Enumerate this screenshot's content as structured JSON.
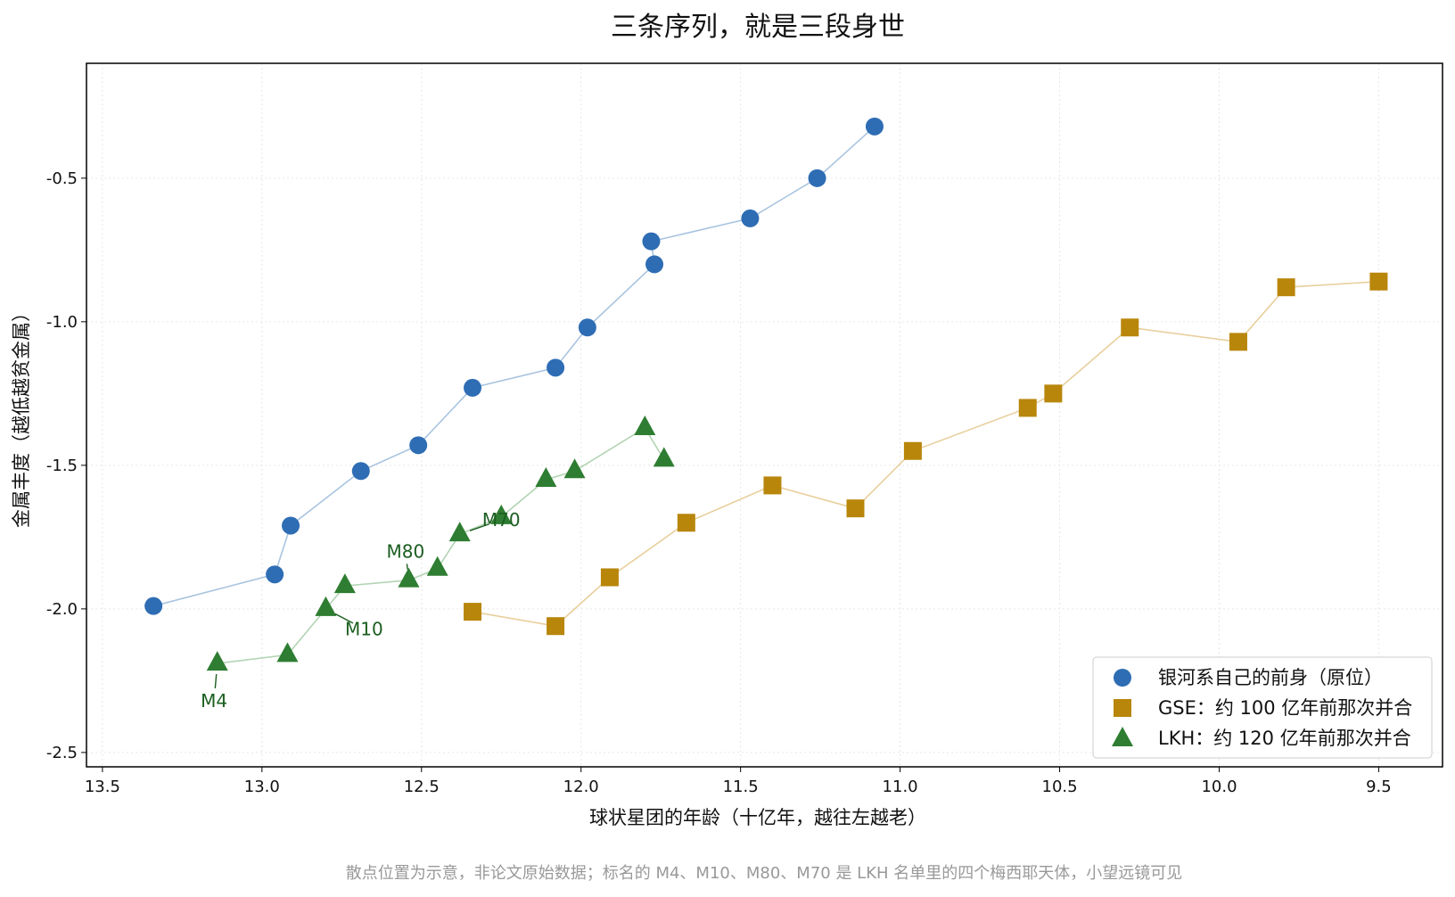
{
  "chart_data": {
    "type": "scatter",
    "title": "三条序列，就是三段身世",
    "xlabel": "球状星团的年龄（十亿年，越往左越老）",
    "ylabel": "金属丰度（越低越贫金属）",
    "xlim": [
      13.55,
      9.3
    ],
    "ylim": [
      -2.55,
      -0.1
    ],
    "x_inverted": true,
    "x_ticks": [
      13.5,
      13.0,
      12.5,
      12.0,
      11.5,
      11.0,
      10.5,
      10.0,
      9.5
    ],
    "x_tick_labels": [
      "13.5",
      "13.0",
      "12.5",
      "12.0",
      "11.5",
      "11.0",
      "10.5",
      "10.0",
      "9.5"
    ],
    "y_ticks": [
      -0.5,
      -1.0,
      -1.5,
      -2.0,
      -2.5
    ],
    "y_tick_labels": [
      "-0.5",
      "-1.0",
      "-1.5",
      "-2.0",
      "-2.5"
    ],
    "grid": true,
    "legend_position": "bottom-right",
    "series": [
      {
        "name": "银河系自己的前身（原位）",
        "marker": "circle",
        "color": "#2e6db4",
        "line_color": "#a9c4e0",
        "points": [
          [
            13.34,
            -1.99
          ],
          [
            12.96,
            -1.88
          ],
          [
            12.91,
            -1.71
          ],
          [
            12.69,
            -1.52
          ],
          [
            12.51,
            -1.43
          ],
          [
            12.34,
            -1.23
          ],
          [
            12.08,
            -1.16
          ],
          [
            11.98,
            -1.02
          ],
          [
            11.77,
            -0.8
          ],
          [
            11.78,
            -0.72
          ],
          [
            11.47,
            -0.64
          ],
          [
            11.26,
            -0.5
          ],
          [
            11.08,
            -0.32
          ]
        ]
      },
      {
        "name": "GSE：约 100 亿年前那次并合",
        "marker": "square",
        "color": "#b8860b",
        "line_color": "#e8cf9c",
        "points": [
          [
            12.34,
            -2.01
          ],
          [
            12.08,
            -2.06
          ],
          [
            11.91,
            -1.89
          ],
          [
            11.67,
            -1.7
          ],
          [
            11.4,
            -1.57
          ],
          [
            11.14,
            -1.65
          ],
          [
            10.96,
            -1.45
          ],
          [
            10.6,
            -1.3
          ],
          [
            10.52,
            -1.25
          ],
          [
            10.28,
            -1.02
          ],
          [
            9.94,
            -1.07
          ],
          [
            9.79,
            -0.88
          ],
          [
            9.5,
            -0.86
          ]
        ]
      },
      {
        "name": "LKH：约 120 亿年前那次并合",
        "marker": "triangle",
        "color": "#2e7d32",
        "line_color": "#b2d4b3",
        "points": [
          [
            13.14,
            -2.19
          ],
          [
            12.92,
            -2.16
          ],
          [
            12.8,
            -2.0
          ],
          [
            12.74,
            -1.92
          ],
          [
            12.54,
            -1.9
          ],
          [
            12.45,
            -1.86
          ],
          [
            12.38,
            -1.74
          ],
          [
            12.25,
            -1.68
          ],
          [
            12.11,
            -1.55
          ],
          [
            12.02,
            -1.52
          ],
          [
            11.8,
            -1.37
          ],
          [
            11.74,
            -1.48
          ]
        ]
      }
    ],
    "annotations": [
      {
        "text": "M4",
        "x": 13.14,
        "y": -2.19,
        "text_x": 13.15,
        "text_y": -2.32
      },
      {
        "text": "M10",
        "x": 12.8,
        "y": -2.0,
        "text_x": 12.68,
        "text_y": -2.07
      },
      {
        "text": "M80",
        "x": 12.54,
        "y": -1.9,
        "text_x": 12.55,
        "text_y": -1.8
      },
      {
        "text": "M70",
        "x": 12.38,
        "y": -1.74,
        "text_x": 12.25,
        "text_y": -1.69
      }
    ],
    "annotation_color": "#1b5e20"
  },
  "footnote": "散点位置为示意，非论文原始数据；标名的 M4、M10、M80、M70 是 LKH 名单里的四个梅西耶天体，小望远镜可见"
}
